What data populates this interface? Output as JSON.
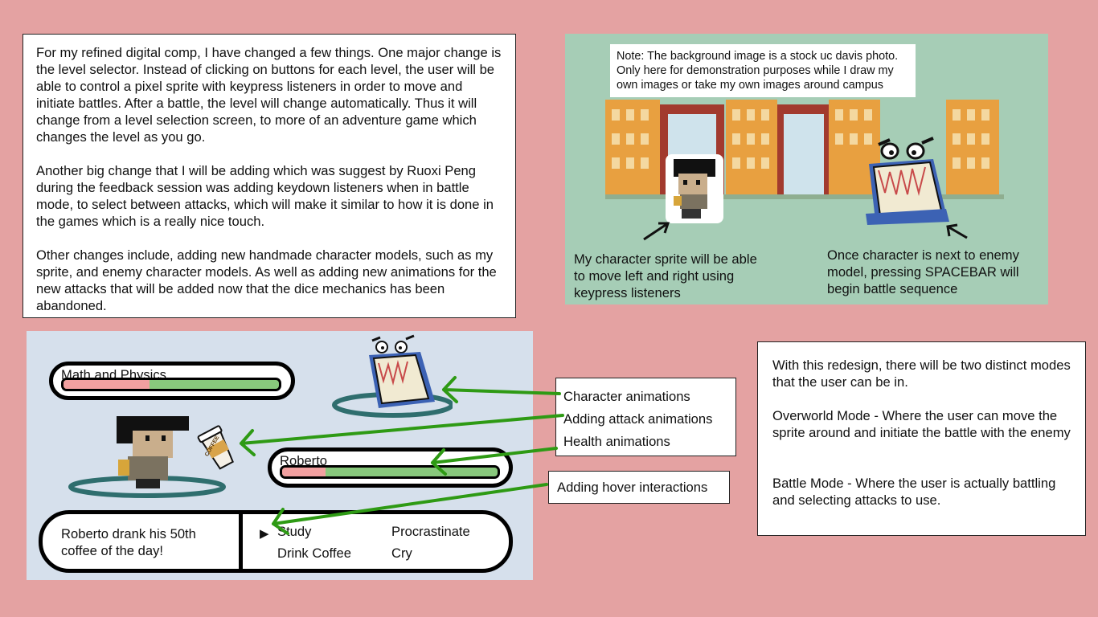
{
  "intro": {
    "paragraphs": [
      "For my refined digital comp, I have changed a few things. One major change is the level selector. Instead of clicking on buttons for each level, the user will be able to control a pixel sprite with keypress listeners in order to move and initiate battles. After a battle, the level will change automatically. Thus it will change from a level selection screen, to more of an adventure game which changes the level as you go.",
      "Another big change that I will be adding which was suggest by Ruoxi Peng during the feedback session was adding keydown listeners when in battle mode, to select between attacks, which will make it similar to how it is done in the games which is a really nice touch.",
      "Other changes include, adding new handmade character models, such as my sprite, and enemy character models. As well as adding new animations for the new attacks that will be added now that the dice mechanics has been abandoned."
    ]
  },
  "overworld": {
    "note": "Note: The background image is a stock uc davis photo. Only here for demonstration purposes while I draw my own images or take my own images around campus",
    "sprite_caption": "My character sprite will be able to move left and right using keypress listeners",
    "battle_caption": "Once character is next to enemy model, pressing SPACEBAR will begin battle sequence"
  },
  "battle": {
    "enemy_name": "Math and Physics",
    "enemy_hp_fraction": 0.4,
    "player_name": "Roberto",
    "player_hp_fraction": 0.2,
    "coffee_label": "COFFEE",
    "dialog": "Roberto drank his 50th coffee of the day!",
    "cursor": "▶",
    "attacks": [
      "Study",
      "Procrastinate",
      "Drink Coffee",
      "Cry"
    ],
    "selected_attack": "Study"
  },
  "callouts": {
    "character_animations": "Character animations",
    "attack_animations": "Adding attack animations",
    "health_animations": "Health animations",
    "hover_interactions": "Adding hover interactions"
  },
  "summary": {
    "paragraphs": [
      "With this redesign, there will be two distinct modes that the user can be in.",
      "Overworld Mode - Where the user can move the sprite around and initiate the battle with the enemy",
      "Battle Mode - Where the user is actually battling and selecting attacks to use."
    ]
  },
  "colors": {
    "background": "#e4a2a2",
    "overworld_panel": "#a6cdb6",
    "battle_panel": "#d6e0ec",
    "arrow_green": "#2e9a14",
    "hp_green": "#88c87c",
    "hp_red": "#f2a0a0",
    "platform_teal": "#2f6e6e"
  }
}
